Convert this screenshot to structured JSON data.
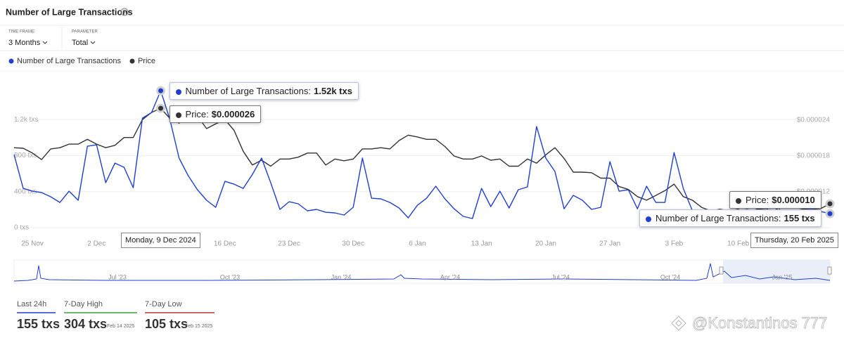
{
  "header": {
    "title": "Number of Large Transactions"
  },
  "controls": [
    {
      "label": "TIME FRAME",
      "value": "3 Months"
    },
    {
      "label": "PARAMETER",
      "value": "Total"
    }
  ],
  "chart_data": {
    "type": "line",
    "categories": [
      null,
      null,
      "25 Nov",
      null,
      null,
      null,
      null,
      null,
      null,
      "2 Dec",
      null,
      null,
      null,
      null,
      null,
      null,
      "9 Dec",
      null,
      null,
      null,
      null,
      null,
      null,
      "16 Dec",
      null,
      null,
      null,
      null,
      null,
      null,
      "23 Dec",
      null,
      null,
      null,
      null,
      null,
      null,
      "30 Dec",
      null,
      null,
      null,
      null,
      null,
      null,
      "6 Jan",
      null,
      null,
      null,
      null,
      null,
      null,
      "13 Jan",
      null,
      null,
      null,
      null,
      null,
      null,
      "20 Jan",
      null,
      null,
      null,
      null,
      null,
      null,
      "27 Jan",
      null,
      null,
      null,
      null,
      null,
      null,
      "3 Feb",
      null,
      null,
      null,
      null,
      null,
      null,
      "10 Feb",
      null,
      null,
      null,
      null,
      null,
      null,
      null,
      null,
      null,
      null
    ],
    "series": [
      {
        "name": "Number of Large Transactions",
        "color": "#1f3fd1",
        "values": [
          810,
          436,
          405,
          390,
          343,
          280,
          405,
          304,
          904,
          920,
          499,
          717,
          670,
          444,
          1216,
          1278,
          1520,
          1200,
          772,
          577,
          421,
          304,
          226,
          514,
          483,
          436,
          592,
          772,
          499,
          203,
          288,
          265,
          187,
          203,
          171,
          164,
          140,
          226,
          772,
          327,
          320,
          280,
          218,
          109,
          249,
          327,
          460,
          320,
          210,
          125,
          101,
          436,
          234,
          405,
          218,
          421,
          452,
          1122,
          772,
          624,
          210,
          359,
          304,
          203,
          226,
          733,
          405,
          421,
          210,
          460,
          280,
          280,
          834,
          436,
          187,
          164,
          171,
          187,
          148,
          187,
          203,
          171,
          187,
          304,
          105,
          170,
          190,
          210,
          180,
          155
        ],
        "value_labels": [
          null,
          null,
          null,
          null,
          null,
          null,
          null,
          null,
          null,
          null,
          null,
          null,
          null,
          null,
          null,
          null,
          "1.52k txs",
          null,
          null,
          null,
          null,
          null,
          null,
          null,
          null,
          null,
          null,
          null,
          null,
          null,
          null,
          null,
          null,
          null,
          null,
          null,
          null,
          null,
          null,
          null,
          null,
          null,
          null,
          null,
          null,
          null,
          null,
          null,
          null,
          null,
          null,
          null,
          null,
          null,
          null,
          null,
          null,
          null,
          null,
          null,
          null,
          null,
          null,
          null,
          null,
          null,
          null,
          null,
          null,
          null,
          null,
          null,
          null,
          null,
          null,
          null,
          null,
          null,
          null,
          null,
          null,
          null,
          null,
          null,
          null,
          null,
          null,
          null,
          null,
          "155 txs"
        ]
      },
      {
        "name": "Price",
        "color": "#333333",
        "axis": "y2",
        "values": [
          1.94e-05,
          1.93e-05,
          1.85e-05,
          1.74e-05,
          1.92e-05,
          1.94e-05,
          2e-05,
          2e-05,
          2.08e-05,
          2e-05,
          1.94e-05,
          1.98e-05,
          2.11e-05,
          2.11e-05,
          2.41e-05,
          2.53e-05,
          2.6e-05,
          2.43e-05,
          2.35e-05,
          2.49e-05,
          2.47e-05,
          2.26e-05,
          2.34e-05,
          2.41e-05,
          2.23e-05,
          1.88e-05,
          1.65e-05,
          1.73e-05,
          1.63e-05,
          1.75e-05,
          1.75e-05,
          1.78e-05,
          1.85e-05,
          1.85e-05,
          1.65e-05,
          1.75e-05,
          1.72e-05,
          1.75e-05,
          1.92e-05,
          1.92e-05,
          1.94e-05,
          1.92e-05,
          2.06e-05,
          2.15e-05,
          2.12e-05,
          2.08e-05,
          2.08e-05,
          1.96e-05,
          1.8e-05,
          1.75e-05,
          1.75e-05,
          1.8e-05,
          1.73e-05,
          1.75e-05,
          1.63e-05,
          1.63e-05,
          1.75e-05,
          1.68e-05,
          1.82e-05,
          1.94e-05,
          1.76e-05,
          1.53e-05,
          1.53e-05,
          1.52e-05,
          1.43e-05,
          1.43e-05,
          1.29e-05,
          1.24e-05,
          1.12e-05,
          1.06e-05,
          1.14e-05,
          1.22e-05,
          1.33e-05,
          1.12e-05,
          1.06e-05,
          9.4e-06,
          8.8e-06,
          9.1e-06,
          8.8e-06,
          9.1e-06,
          8.4e-06,
          9.1e-06,
          9.2e-06,
          9.3e-06,
          8.4e-06,
          8.8e-06,
          9.1e-06,
          9.1e-06,
          9.2e-06,
          1e-05
        ],
        "value_labels": [
          null,
          null,
          null,
          null,
          null,
          null,
          null,
          null,
          null,
          null,
          null,
          null,
          null,
          null,
          null,
          null,
          "$0.000026",
          null,
          null,
          null,
          null,
          null,
          null,
          null,
          null,
          null,
          null,
          null,
          null,
          null,
          null,
          null,
          null,
          null,
          null,
          null,
          null,
          null,
          null,
          null,
          null,
          null,
          null,
          null,
          null,
          null,
          null,
          null,
          null,
          null,
          null,
          null,
          null,
          null,
          null,
          null,
          null,
          null,
          null,
          null,
          null,
          null,
          null,
          null,
          null,
          null,
          null,
          null,
          null,
          null,
          null,
          null,
          null,
          null,
          null,
          null,
          null,
          null,
          null,
          null,
          null,
          null,
          null,
          null,
          null,
          null,
          null,
          null,
          null,
          "$0.000010"
        ]
      }
    ],
    "tooltip_dates": [
      "Monday, 9 Dec 2024",
      "Thursday, 20 Feb 2025"
    ],
    "ylim": [
      0,
      1630
    ],
    "yticks": [
      {
        "value": 0,
        "label": "0 txs"
      },
      {
        "value": 400,
        "label": "400 txs"
      },
      {
        "value": 800,
        "label": "800 txs"
      },
      {
        "value": 1200,
        "label": "1.2k txs"
      }
    ],
    "y2lim": [
      6e-06,
      3.06e-05
    ],
    "y2ticks": [
      {
        "value": 1.2e-05,
        "label": "$0.000012"
      },
      {
        "value": 1.8e-05,
        "label": "$0.000018"
      },
      {
        "value": 2.4e-05,
        "label": "$0.000024"
      }
    ],
    "grid": true
  },
  "navigator": {
    "labels": [
      "Jul '23",
      "Oct '23",
      "Jan '24",
      "Apr '24",
      "Jul '24",
      "Oct '24",
      "Jan '25"
    ]
  },
  "stats": [
    {
      "label": "Last 24h",
      "value": "155 txs"
    },
    {
      "label": "7-Day High",
      "value": "304 txs",
      "date": "Feb 14 2025"
    },
    {
      "label": "7-Day Low",
      "value": "105 txs",
      "date": "Feb 15 2025"
    }
  ],
  "watermark": "@Konstantinos 777"
}
